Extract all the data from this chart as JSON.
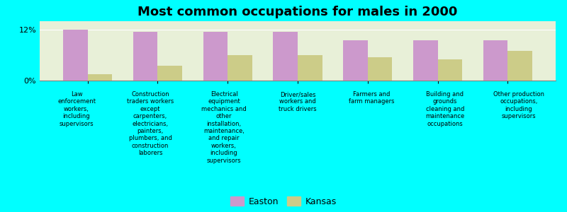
{
  "title": "Most common occupations for males in 2000",
  "categories": [
    "Law\nenforcement\nworkers,\nincluding\nsupervisors",
    "Construction\ntraders workers\nexcept\ncarpenters,\nelectricians,\npainters,\nplumbers, and\nconstruction\nlaborers",
    "Electrical\nequipment\nmechanics and\nother\ninstallation,\nmaintenance,\nand repair\nworkers,\nincluding\nsupervisors",
    "Driver/sales\nworkers and\ntruck drivers",
    "Farmers and\nfarm managers",
    "Building and\ngrounds\ncleaning and\nmaintenance\noccupations",
    "Other production\noccupations,\nincluding\nsupervisors"
  ],
  "easton_values": [
    12.0,
    11.5,
    11.5,
    11.5,
    9.5,
    9.5,
    9.5
  ],
  "kansas_values": [
    1.5,
    3.5,
    6.0,
    6.0,
    5.5,
    5.0,
    7.0
  ],
  "easton_color": "#cc99cc",
  "kansas_color": "#cccc88",
  "background_color": "#00ffff",
  "plot_bg_color": "#e8f0d8",
  "ylim": [
    0,
    14
  ],
  "yticks": [
    0,
    12
  ],
  "ytick_labels": [
    "0%",
    "12%"
  ],
  "legend_labels": [
    "Easton",
    "Kansas"
  ],
  "title_fontsize": 13,
  "bar_width": 0.35
}
